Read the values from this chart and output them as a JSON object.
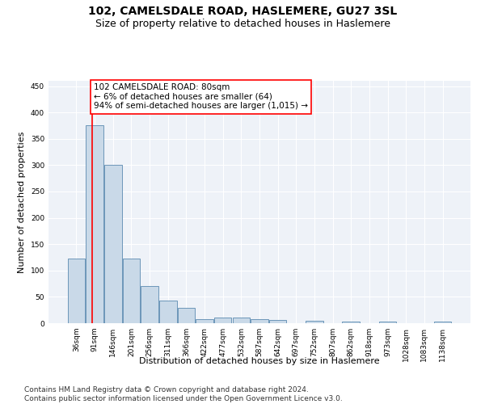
{
  "title": "102, CAMELSDALE ROAD, HASLEMERE, GU27 3SL",
  "subtitle": "Size of property relative to detached houses in Haslemere",
  "xlabel": "Distribution of detached houses by size in Haslemere",
  "ylabel": "Number of detached properties",
  "bar_labels": [
    "36sqm",
    "91sqm",
    "146sqm",
    "201sqm",
    "256sqm",
    "311sqm",
    "366sqm",
    "422sqm",
    "477sqm",
    "532sqm",
    "587sqm",
    "642sqm",
    "697sqm",
    "752sqm",
    "807sqm",
    "862sqm",
    "918sqm",
    "973sqm",
    "1028sqm",
    "1083sqm",
    "1138sqm"
  ],
  "bar_values": [
    122,
    375,
    300,
    123,
    70,
    43,
    29,
    8,
    10,
    11,
    7,
    6,
    0,
    4,
    0,
    3,
    0,
    3,
    0,
    0,
    3
  ],
  "bar_color": "#c9d9e8",
  "bar_edge_color": "#5a8ab0",
  "annotation_line1": "102 CAMELSDALE ROAD: 80sqm",
  "annotation_line2": "← 6% of detached houses are smaller (64)",
  "annotation_line3": "94% of semi-detached houses are larger (1,015) →",
  "vline_x_index": 0.88,
  "ylim": [
    0,
    460
  ],
  "yticks": [
    0,
    50,
    100,
    150,
    200,
    250,
    300,
    350,
    400,
    450
  ],
  "plot_bg_color": "#eef2f8",
  "footer": "Contains HM Land Registry data © Crown copyright and database right 2024.\nContains public sector information licensed under the Open Government Licence v3.0.",
  "title_fontsize": 10,
  "subtitle_fontsize": 9,
  "annotation_fontsize": 7.5,
  "axis_label_fontsize": 8,
  "tick_fontsize": 6.5,
  "footer_fontsize": 6.5
}
